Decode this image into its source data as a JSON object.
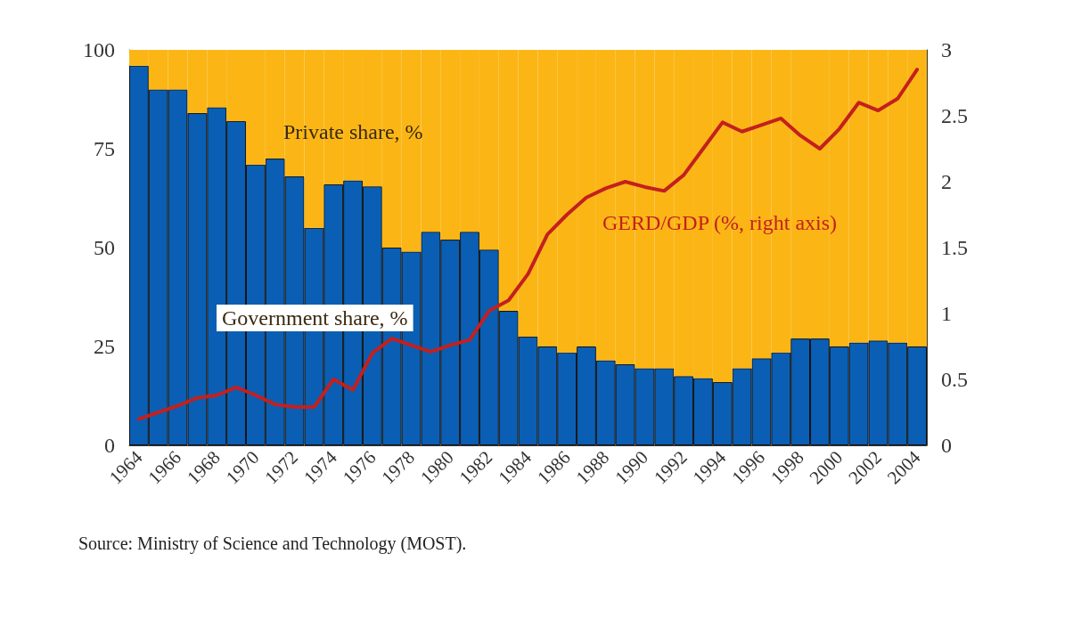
{
  "chart_data": {
    "type": "bar",
    "stacked": true,
    "categories": [
      "1964",
      null,
      "1966",
      null,
      "1968",
      null,
      "1970",
      null,
      "1972",
      null,
      "1974",
      null,
      "1976",
      null,
      "1978",
      null,
      "1980",
      null,
      "1982",
      null,
      "1984",
      null,
      "1986",
      null,
      "1988",
      null,
      "1990",
      null,
      "1992",
      null,
      "1994",
      null,
      "1996",
      null,
      "1998",
      null,
      "2000",
      null,
      "2002",
      null,
      "2004"
    ],
    "series": [
      {
        "name": "Government share, %",
        "color": "#0a5fb4",
        "values": [
          96,
          90,
          90,
          84,
          85.5,
          82,
          71,
          72.5,
          68,
          55,
          66,
          67,
          65.5,
          50,
          49,
          54,
          52,
          54,
          49.5,
          34,
          27.5,
          25,
          23.5,
          25,
          21.5,
          20.5,
          19.5,
          19.5,
          17.5,
          17,
          16,
          19.5,
          22,
          23.5,
          27,
          27,
          25,
          26,
          26.5,
          26,
          25
        ]
      },
      {
        "name": "Private share, %",
        "color": "#fbb616",
        "values": [
          4,
          10,
          10,
          16,
          14.5,
          18,
          29,
          27.5,
          32,
          45,
          34,
          33,
          34.5,
          50,
          51,
          46,
          48,
          46,
          50.5,
          66,
          72.5,
          75,
          76.5,
          75,
          78.5,
          79.5,
          80.5,
          80.5,
          82.5,
          83,
          84,
          80.5,
          78,
          76.5,
          73,
          73,
          75,
          74,
          73.5,
          74,
          75
        ]
      },
      {
        "name": "GERD/GDP (%, right axis)",
        "type": "line",
        "axis": "y2",
        "color": "#c3201f",
        "values": [
          0.2,
          0.25,
          0.3,
          0.36,
          0.38,
          0.44,
          0.38,
          0.31,
          0.29,
          0.29,
          0.5,
          0.42,
          0.7,
          0.81,
          0.76,
          0.71,
          0.76,
          0.8,
          1.02,
          1.1,
          1.3,
          1.6,
          1.75,
          1.88,
          1.95,
          2.0,
          1.96,
          1.93,
          2.05,
          2.25,
          2.45,
          2.38,
          2.43,
          2.48,
          2.35,
          2.25,
          2.4,
          2.6,
          2.54,
          2.63,
          2.85
        ]
      }
    ],
    "ylim": [
      0,
      100
    ],
    "yticks": [
      0,
      25,
      50,
      75,
      100
    ],
    "y2lim": [
      0,
      3
    ],
    "y2ticks": [
      0,
      0.5,
      1,
      1.5,
      2,
      2.5,
      3
    ],
    "grid": false,
    "legend": false,
    "marker": "none",
    "line_style": "solid",
    "annotations": [
      "Source: Ministry of Science and Technology (MOST)."
    ]
  }
}
